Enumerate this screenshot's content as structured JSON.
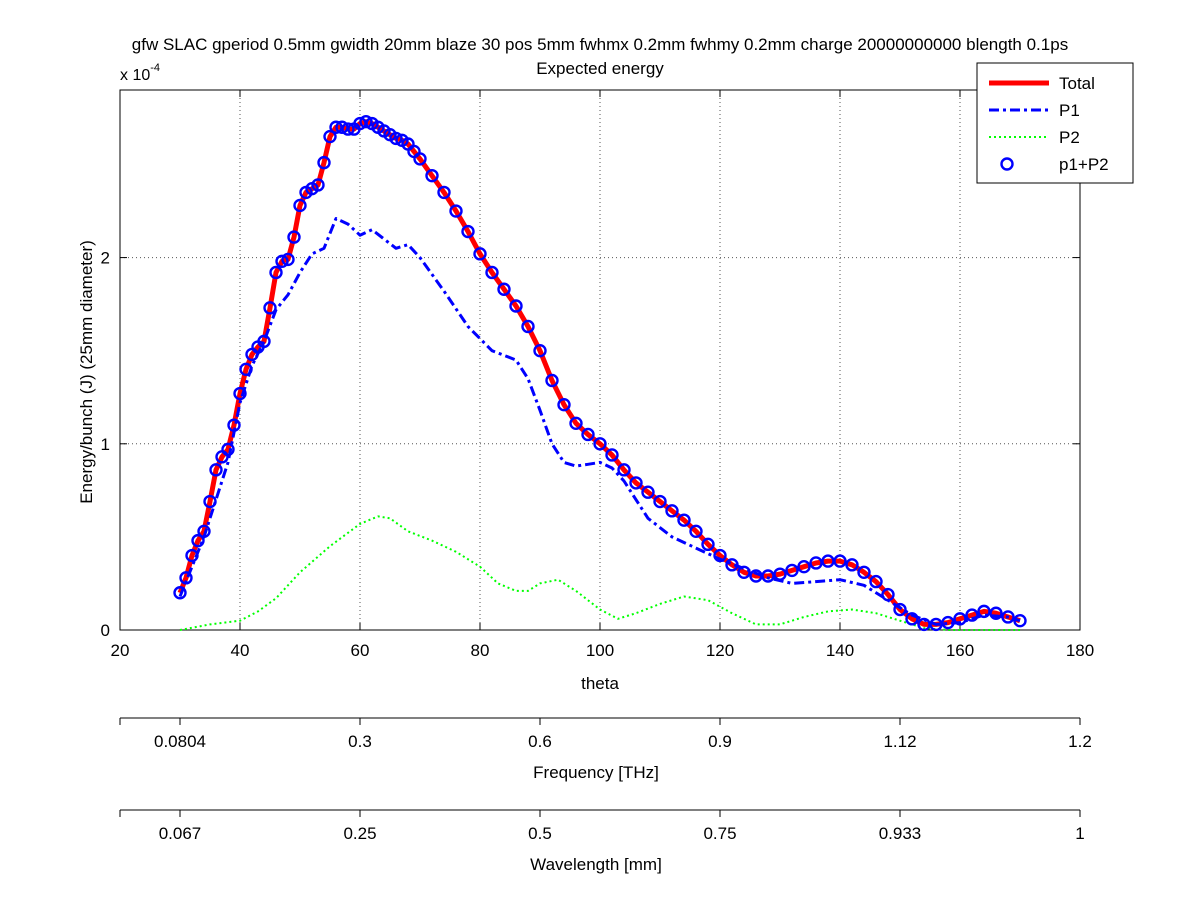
{
  "chart_data": {
    "type": "line",
    "title": "gfw SLAC gperiod 0.5mm gwidth 20mm blaze 30 pos 5mm fwhmx 0.2mm fwhmy 0.2mm charge 20000000000 blength 0.1ps",
    "subtitle": "Expected energy",
    "xlabel": "theta",
    "ylabel": "Energy/bunch (J) (25mm diameter)",
    "y_exponent_label": "x 10",
    "y_exponent_power": "-4",
    "xlim": [
      20,
      180
    ],
    "ylim": [
      0,
      2.9
    ],
    "y_scale_factor": 0.0001,
    "x_ticks": [
      20,
      40,
      60,
      80,
      100,
      120,
      140,
      160,
      180
    ],
    "x_tick_labels": [
      "20",
      "40",
      "60",
      "80",
      "100",
      "120",
      "140",
      "160",
      "180"
    ],
    "y_ticks": [
      0,
      1,
      2
    ],
    "y_tick_labels": [
      "0",
      "1",
      "2"
    ],
    "grid": true,
    "legend_position": "top-right",
    "series": [
      {
        "name": "Total",
        "style": "solid",
        "color": "#ff0000",
        "x": [
          30,
          31,
          32,
          33,
          34,
          35,
          36,
          37,
          38,
          39,
          40,
          41,
          42,
          43,
          44,
          45,
          46,
          47,
          48,
          49,
          50,
          51,
          52,
          53,
          54,
          55,
          56,
          57,
          58,
          59,
          60,
          61,
          62,
          63,
          64,
          65,
          66,
          67,
          68,
          69,
          70,
          72,
          74,
          76,
          78,
          80,
          82,
          84,
          86,
          88,
          90,
          92,
          94,
          96,
          98,
          100,
          102,
          104,
          106,
          108,
          110,
          112,
          114,
          116,
          118,
          120,
          122,
          124,
          126,
          128,
          130,
          132,
          134,
          136,
          138,
          140,
          142,
          144,
          146,
          148,
          150,
          152,
          154,
          156,
          158,
          160,
          162,
          164,
          166,
          168,
          170
        ],
        "y": [
          0.2,
          0.28,
          0.4,
          0.48,
          0.53,
          0.69,
          0.86,
          0.93,
          0.97,
          1.1,
          1.27,
          1.4,
          1.48,
          1.52,
          1.55,
          1.73,
          1.92,
          1.98,
          1.99,
          2.11,
          2.28,
          2.35,
          2.37,
          2.39,
          2.51,
          2.65,
          2.7,
          2.7,
          2.69,
          2.69,
          2.72,
          2.73,
          2.72,
          2.7,
          2.68,
          2.66,
          2.64,
          2.63,
          2.61,
          2.57,
          2.53,
          2.44,
          2.35,
          2.25,
          2.14,
          2.02,
          1.92,
          1.83,
          1.74,
          1.63,
          1.5,
          1.34,
          1.21,
          1.11,
          1.05,
          1.0,
          0.94,
          0.86,
          0.79,
          0.74,
          0.69,
          0.64,
          0.59,
          0.53,
          0.46,
          0.4,
          0.35,
          0.31,
          0.29,
          0.29,
          0.3,
          0.32,
          0.34,
          0.36,
          0.37,
          0.37,
          0.35,
          0.31,
          0.26,
          0.19,
          0.11,
          0.06,
          0.03,
          0.03,
          0.04,
          0.06,
          0.08,
          0.1,
          0.09,
          0.07,
          0.05
        ]
      },
      {
        "name": "P1",
        "style": "dashdot",
        "color": "#0000ff",
        "x": [
          30,
          34,
          38,
          40,
          42,
          44,
          46,
          48,
          50,
          52,
          54,
          56,
          58,
          60,
          62,
          64,
          66,
          68,
          70,
          74,
          78,
          82,
          86,
          88,
          90,
          92,
          94,
          96,
          98,
          100,
          102,
          104,
          106,
          108,
          112,
          116,
          120,
          124,
          128,
          132,
          136,
          140,
          144,
          148,
          152,
          156,
          160,
          164,
          168,
          170
        ],
        "y": [
          0.18,
          0.5,
          0.9,
          1.22,
          1.42,
          1.55,
          1.72,
          1.8,
          1.92,
          2.02,
          2.05,
          2.21,
          2.18,
          2.12,
          2.15,
          2.1,
          2.05,
          2.07,
          2.0,
          1.82,
          1.63,
          1.5,
          1.45,
          1.35,
          1.18,
          1.0,
          0.9,
          0.88,
          0.89,
          0.9,
          0.87,
          0.8,
          0.7,
          0.6,
          0.5,
          0.44,
          0.38,
          0.33,
          0.28,
          0.25,
          0.26,
          0.27,
          0.24,
          0.16,
          0.08,
          0.03,
          0.04,
          0.08,
          0.07,
          0.05
        ]
      },
      {
        "name": "P2",
        "style": "dotted",
        "color": "#00ff00",
        "x": [
          30,
          35,
          40,
          43,
          46,
          50,
          55,
          60,
          63,
          65,
          68,
          72,
          76,
          80,
          83,
          86,
          88,
          90,
          93,
          96,
          100,
          103,
          106,
          110,
          114,
          118,
          122,
          126,
          130,
          134,
          138,
          142,
          146,
          150,
          154,
          158,
          162,
          166,
          170
        ],
        "y": [
          0.0,
          0.03,
          0.05,
          0.1,
          0.17,
          0.31,
          0.45,
          0.57,
          0.61,
          0.6,
          0.53,
          0.48,
          0.42,
          0.34,
          0.25,
          0.21,
          0.21,
          0.25,
          0.27,
          0.21,
          0.11,
          0.06,
          0.09,
          0.14,
          0.18,
          0.16,
          0.09,
          0.03,
          0.03,
          0.07,
          0.1,
          0.11,
          0.09,
          0.05,
          0.01,
          0.0,
          0.0,
          0.0,
          0.0
        ]
      },
      {
        "name": "p1+P2",
        "style": "markers",
        "color": "#0000ff",
        "x": [
          30,
          31,
          32,
          33,
          34,
          35,
          36,
          37,
          38,
          39,
          40,
          41,
          42,
          43,
          44,
          45,
          46,
          47,
          48,
          49,
          50,
          51,
          52,
          53,
          54,
          55,
          56,
          57,
          58,
          59,
          60,
          61,
          62,
          63,
          64,
          65,
          66,
          67,
          68,
          69,
          70,
          72,
          74,
          76,
          78,
          80,
          82,
          84,
          86,
          88,
          90,
          92,
          94,
          96,
          98,
          100,
          102,
          104,
          106,
          108,
          110,
          112,
          114,
          116,
          118,
          120,
          122,
          124,
          126,
          128,
          130,
          132,
          134,
          136,
          138,
          140,
          142,
          144,
          146,
          148,
          150,
          152,
          154,
          156,
          158,
          160,
          162,
          164,
          166,
          168,
          170
        ],
        "y": [
          0.2,
          0.28,
          0.4,
          0.48,
          0.53,
          0.69,
          0.86,
          0.93,
          0.97,
          1.1,
          1.27,
          1.4,
          1.48,
          1.52,
          1.55,
          1.73,
          1.92,
          1.98,
          1.99,
          2.11,
          2.28,
          2.35,
          2.37,
          2.39,
          2.51,
          2.65,
          2.7,
          2.7,
          2.69,
          2.69,
          2.72,
          2.73,
          2.72,
          2.7,
          2.68,
          2.66,
          2.64,
          2.63,
          2.61,
          2.57,
          2.53,
          2.44,
          2.35,
          2.25,
          2.14,
          2.02,
          1.92,
          1.83,
          1.74,
          1.63,
          1.5,
          1.34,
          1.21,
          1.11,
          1.05,
          1.0,
          0.94,
          0.86,
          0.79,
          0.74,
          0.69,
          0.64,
          0.59,
          0.53,
          0.46,
          0.4,
          0.35,
          0.31,
          0.29,
          0.29,
          0.3,
          0.32,
          0.34,
          0.36,
          0.37,
          0.37,
          0.35,
          0.31,
          0.26,
          0.19,
          0.11,
          0.06,
          0.03,
          0.03,
          0.04,
          0.06,
          0.08,
          0.1,
          0.09,
          0.07,
          0.05
        ]
      }
    ],
    "secondary_axes": [
      {
        "label": "Frequency [THz]",
        "ticks": [
          {
            "theta": 30,
            "label": "0.0804"
          },
          {
            "theta": 60,
            "label": "0.3"
          },
          {
            "theta": 90,
            "label": "0.6"
          },
          {
            "theta": 120,
            "label": "0.9"
          },
          {
            "theta": 150,
            "label": "1.12"
          },
          {
            "theta": 180,
            "label": "1.2"
          }
        ]
      },
      {
        "label": "Wavelength [mm]",
        "ticks": [
          {
            "theta": 30,
            "label": "0.067"
          },
          {
            "theta": 60,
            "label": "0.25"
          },
          {
            "theta": 90,
            "label": "0.5"
          },
          {
            "theta": 120,
            "label": "0.75"
          },
          {
            "theta": 150,
            "label": "0.933"
          },
          {
            "theta": 180,
            "label": "1"
          }
        ]
      }
    ]
  }
}
